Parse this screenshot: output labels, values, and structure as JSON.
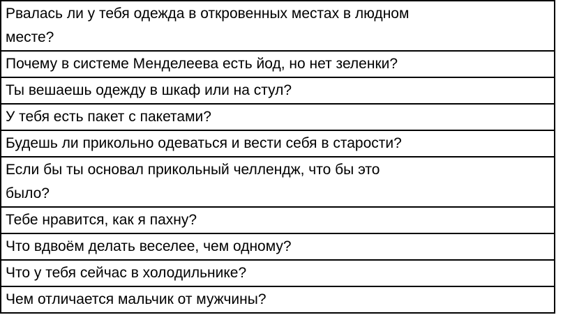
{
  "table": {
    "colors": {
      "border": "#000000",
      "text": "#000000",
      "background": "#ffffff"
    },
    "rows": [
      {
        "text": "Рвалась ли у тебя одежда в откровенных местах в людном\nместе?"
      },
      {
        "text": "Почему в системе Менделеева есть йод, но нет зеленки?"
      },
      {
        "text": "Ты вешаешь одежду в шкаф или на стул?"
      },
      {
        "text": "У тебя есть пакет с пакетами?"
      },
      {
        "text": "Будешь ли прикольно одеваться и вести себя в старости?"
      },
      {
        "text": "Если бы ты основал прикольный челлендж, что бы это\nбыло?"
      },
      {
        "text": "Тебе нравится, как я пахну?"
      },
      {
        "text": "Что вдвоём делать веселее, чем одному?"
      },
      {
        "text": "Что у тебя сейчас в холодильнике?"
      },
      {
        "text": "Чем отличается мальчик от мужчины?"
      }
    ]
  }
}
